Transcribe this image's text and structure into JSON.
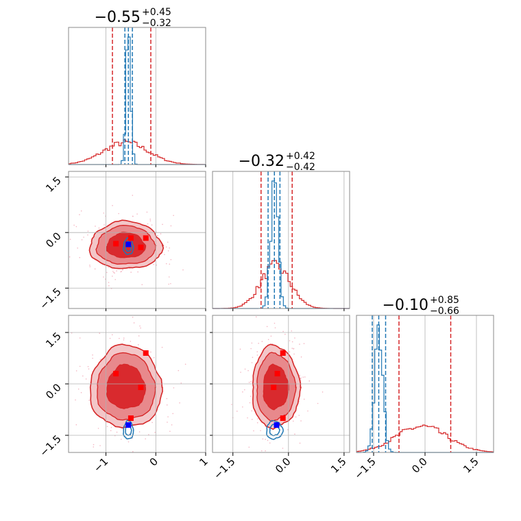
{
  "chart_data": {
    "type": "corner",
    "parameters": 3,
    "colors": {
      "primary": "#d62728",
      "secondary": "#1f77b4",
      "truth_marker": "#0000ff",
      "point_marker": "#ff0000"
    },
    "panels": {
      "titles": [
        {
          "value": "−0.55",
          "plus": "+0.45",
          "minus": "−0.32"
        },
        {
          "value": "−0.32",
          "plus": "+0.42",
          "minus": "−0.42"
        },
        {
          "value": "−0.10",
          "plus": "+0.85",
          "minus": "−0.66"
        }
      ],
      "tick_labels": {
        "axis0": [
          "−1",
          "0",
          "1"
        ],
        "axis1": [
          "−1.5",
          "0.0",
          "1.5"
        ],
        "axis2": [
          "−1.5",
          "0.0",
          "1.5"
        ]
      },
      "ranges": [
        [
          -1.75,
          1.0
        ],
        [
          -2.05,
          1.65
        ],
        [
          -2.0,
          2.0
        ]
      ]
    },
    "marginals": [
      {
        "red_quantiles": [
          -0.87,
          -0.55,
          -0.1
        ],
        "blue_quantiles": [
          -0.62,
          -0.55,
          -0.47
        ],
        "red_center": -0.6,
        "red_width": 0.45,
        "blue_center": -0.55,
        "blue_width": 0.045
      },
      {
        "red_quantiles": [
          -0.74,
          -0.32,
          0.1
        ],
        "blue_quantiles": [
          -0.55,
          -0.38,
          -0.23
        ],
        "red_center": -0.35,
        "red_width": 0.4,
        "blue_center": -0.38,
        "blue_width": 0.1
      },
      {
        "red_quantiles": [
          -0.76,
          -0.1,
          0.75
        ],
        "blue_quantiles": [
          -1.54,
          -1.35,
          -1.15
        ],
        "red_center": -0.1,
        "red_width": 0.75,
        "blue_center": -1.35,
        "blue_width": 0.12
      }
    ],
    "red_points": [
      [
        -0.8,
        -0.3,
        0.3
      ],
      [
        -0.5,
        -0.15,
        -1.0
      ],
      [
        -0.3,
        -0.4,
        -0.1
      ],
      [
        -0.2,
        -0.15,
        0.9
      ]
    ],
    "truth_point": [
      -0.55,
      -0.32,
      -1.2
    ]
  }
}
